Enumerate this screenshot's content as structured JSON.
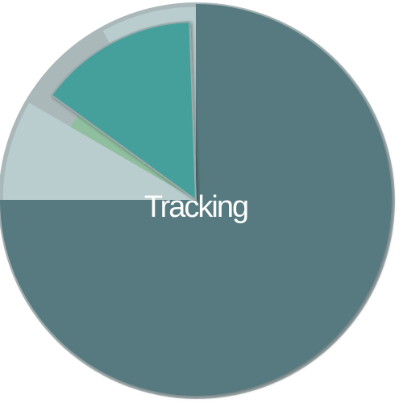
{
  "chart_data": {
    "type": "pie",
    "title": "",
    "center_label": "Tracking",
    "start_angle_deg": 0,
    "direction": "clockwise",
    "slices": [
      {
        "name": "",
        "value": 75,
        "color": "#567a80",
        "ring": 1.0,
        "kind": "major"
      },
      {
        "name": "",
        "value": 8.4,
        "color": "#b9cdce",
        "ring": 0.985,
        "kind": "background"
      },
      {
        "name": "",
        "value": 8.6,
        "color": "#8fbf9f",
        "ring": 0.74,
        "kind": "exploded"
      },
      {
        "name": "",
        "value": 8.0,
        "color": "#b9cdce",
        "ring": 0.985,
        "kind": "background"
      }
    ],
    "highlight_wedge": {
      "from_deg": 306,
      "to_deg": 358,
      "ring": 0.91,
      "color": "#44a09c"
    },
    "outer_ring_color": "#aab8ba",
    "legend": []
  }
}
